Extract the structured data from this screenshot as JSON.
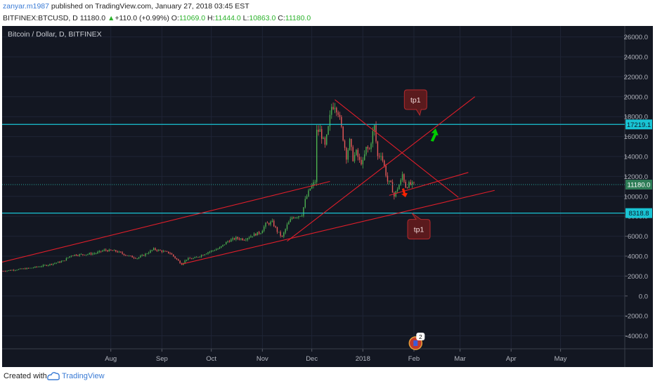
{
  "header": {
    "author": "zanyar.m1987",
    "published_text": "published on TradingView.com, January 27, 2018 03:45 EST",
    "symbol": "BITFINEX:BTCUSD, D",
    "last": "11180.0",
    "change": "+110.0 (+0.99%)",
    "open_label": "O:",
    "open": "11069.0",
    "high_label": "H:",
    "high": "11444.0",
    "low_label": "L:",
    "low": "10863.0",
    "close_label": "C:",
    "close": "11180.0"
  },
  "chart_title": "Bitcoin / Dollar, D, BITFINEX",
  "chart_data": {
    "type": "candlestick",
    "y_axis": {
      "ticks": [
        "26000.0",
        "24000.0",
        "22000.0",
        "20000.0",
        "18000.0",
        "16000.0",
        "14000.0",
        "12000.0",
        "10000.0",
        "8000.0",
        "6000.0",
        "4000.0",
        "2000.0",
        "0.0",
        "-2000.0",
        "-4000.0"
      ],
      "ylim": [
        -5300,
        27100
      ]
    },
    "x_axis": {
      "ticks": [
        "Aug",
        "Sep",
        "Oct",
        "Nov",
        "Dec",
        "2018",
        "Feb",
        "Mar",
        "Apr",
        "May"
      ],
      "range_days": [
        -57,
        321
      ],
      "tick_days": [
        9,
        40,
        70,
        101,
        131,
        162,
        193,
        221,
        252,
        282
      ]
    },
    "price_path": [
      [
        -57,
        2500
      ],
      [
        -40,
        2800
      ],
      [
        -30,
        3100
      ],
      [
        -20,
        3500
      ],
      [
        -15,
        4100
      ],
      [
        -5,
        4200
      ],
      [
        0,
        4300
      ],
      [
        5,
        4600
      ],
      [
        12,
        4500
      ],
      [
        20,
        4000
      ],
      [
        25,
        3800
      ],
      [
        30,
        4200
      ],
      [
        35,
        4700
      ],
      [
        45,
        4300
      ],
      [
        52,
        3200
      ],
      [
        55,
        3700
      ],
      [
        60,
        3800
      ],
      [
        68,
        4400
      ],
      [
        75,
        4800
      ],
      [
        80,
        5500
      ],
      [
        85,
        5800
      ],
      [
        90,
        5700
      ],
      [
        95,
        6100
      ],
      [
        100,
        6400
      ],
      [
        103,
        7200
      ],
      [
        107,
        7400
      ],
      [
        110,
        6500
      ],
      [
        113,
        5900
      ],
      [
        116,
        7100
      ],
      [
        119,
        7900
      ],
      [
        122,
        8000
      ],
      [
        125,
        8200
      ],
      [
        127,
        9600
      ],
      [
        130,
        10800
      ],
      [
        133,
        11500
      ],
      [
        134,
        16500
      ],
      [
        136,
        16600
      ],
      [
        139,
        15000
      ],
      [
        141,
        16800
      ],
      [
        143,
        19000
      ],
      [
        145,
        19200
      ],
      [
        147,
        18500
      ],
      [
        149,
        16800
      ],
      [
        152,
        14000
      ],
      [
        154,
        15500
      ],
      [
        156,
        13800
      ],
      [
        158,
        14400
      ],
      [
        160,
        13500
      ],
      [
        162,
        13400
      ],
      [
        164,
        14800
      ],
      [
        166,
        14700
      ],
      [
        168,
        16400
      ],
      [
        169,
        17000
      ],
      [
        171,
        14000
      ],
      [
        173,
        14300
      ],
      [
        175,
        13000
      ],
      [
        177,
        11500
      ],
      [
        179,
        11200
      ],
      [
        181,
        10000
      ],
      [
        183,
        10800
      ],
      [
        185,
        11500
      ],
      [
        186,
        12200
      ],
      [
        188,
        11000
      ],
      [
        190,
        11200
      ],
      [
        193,
        11180
      ]
    ],
    "hlines": [
      {
        "value": 17219.1,
        "label": "17219.1"
      },
      {
        "value": 8318.8,
        "label": "8318.8"
      }
    ],
    "current_price": {
      "value": 11180.0,
      "label": "11180.0"
    },
    "trendlines": [
      {
        "from": [
          -57,
          3400
        ],
        "to": [
          142,
          11500
        ]
      },
      {
        "from": [
          52,
          3200
        ],
        "to": [
          242,
          10600
        ]
      },
      {
        "from": [
          116,
          5500
        ],
        "to": [
          230,
          20000
        ]
      },
      {
        "from": [
          145,
          19700
        ],
        "to": [
          220,
          9900
        ]
      },
      {
        "from": [
          178,
          10100
        ],
        "to": [
          226,
          12400
        ]
      }
    ],
    "annotations": [
      {
        "text": "tp1",
        "day": 194,
        "value": 19700,
        "pointer": "down"
      },
      {
        "text": "tp1",
        "day": 196,
        "value": 6700,
        "pointer": "up"
      }
    ],
    "arrows": [
      {
        "direction": "up",
        "color": "#00cc00",
        "day": 204,
        "value": 16200
      },
      {
        "direction": "down",
        "color": "#ff2200",
        "day": 187,
        "value": 10400
      }
    ],
    "event_badge": {
      "count": "2",
      "day": 194
    }
  },
  "footer": {
    "created_with": "Created with",
    "brand": "TradingView"
  },
  "colors": {
    "background": "#131722",
    "grid": "#1f2536",
    "up": "#4caf50",
    "down": "#e85858",
    "trendline": "#e01e2a",
    "hline": "#19c4d4"
  }
}
